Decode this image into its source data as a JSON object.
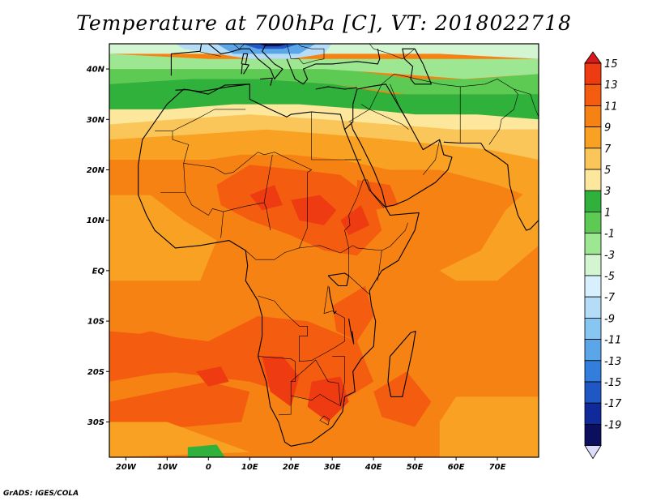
{
  "title": "Temperature at 700hPa [C], VT: 2018022718",
  "credit": "GrADS: IGES/COLA",
  "map": {
    "lat_range": [
      -37,
      45
    ],
    "lon_range": [
      -24,
      80
    ],
    "lat_ticks": [
      {
        "lat": 40,
        "label": "40N"
      },
      {
        "lat": 30,
        "label": "30N"
      },
      {
        "lat": 20,
        "label": "20N"
      },
      {
        "lat": 10,
        "label": "10N"
      },
      {
        "lat": 0,
        "label": "EQ"
      },
      {
        "lat": -10,
        "label": "10S"
      },
      {
        "lat": -20,
        "label": "20S"
      },
      {
        "lat": -30,
        "label": "30S"
      }
    ],
    "lon_ticks": [
      {
        "lon": -20,
        "label": "20W"
      },
      {
        "lon": -10,
        "label": "10W"
      },
      {
        "lon": 0,
        "label": "0"
      },
      {
        "lon": 10,
        "label": "10E"
      },
      {
        "lon": 20,
        "label": "20E"
      },
      {
        "lon": 30,
        "label": "30E"
      },
      {
        "lon": 40,
        "label": "40E"
      },
      {
        "lon": 50,
        "label": "50E"
      },
      {
        "lon": 60,
        "label": "60E"
      },
      {
        "lon": 70,
        "label": "70E"
      }
    ]
  },
  "colorbar": {
    "labels": [
      "15",
      "13",
      "11",
      "9",
      "7",
      "5",
      "3",
      "1",
      "-1",
      "-3",
      "-5",
      "-7",
      "-9",
      "-11",
      "-13",
      "-15",
      "-17",
      "-19"
    ],
    "colors": [
      "#d7191c",
      "#ef3b12",
      "#f45d10",
      "#f78214",
      "#f8a123",
      "#fbc659",
      "#fde79c",
      "#2fb13b",
      "#5dca54",
      "#9ee792",
      "#d3f5d2",
      "#d8f0fd",
      "#b5ddf8",
      "#88c6f2",
      "#5aa6e9",
      "#337ddc",
      "#1f58c5",
      "#112a9b",
      "#0b0f5e",
      "#dedcfb"
    ]
  }
}
